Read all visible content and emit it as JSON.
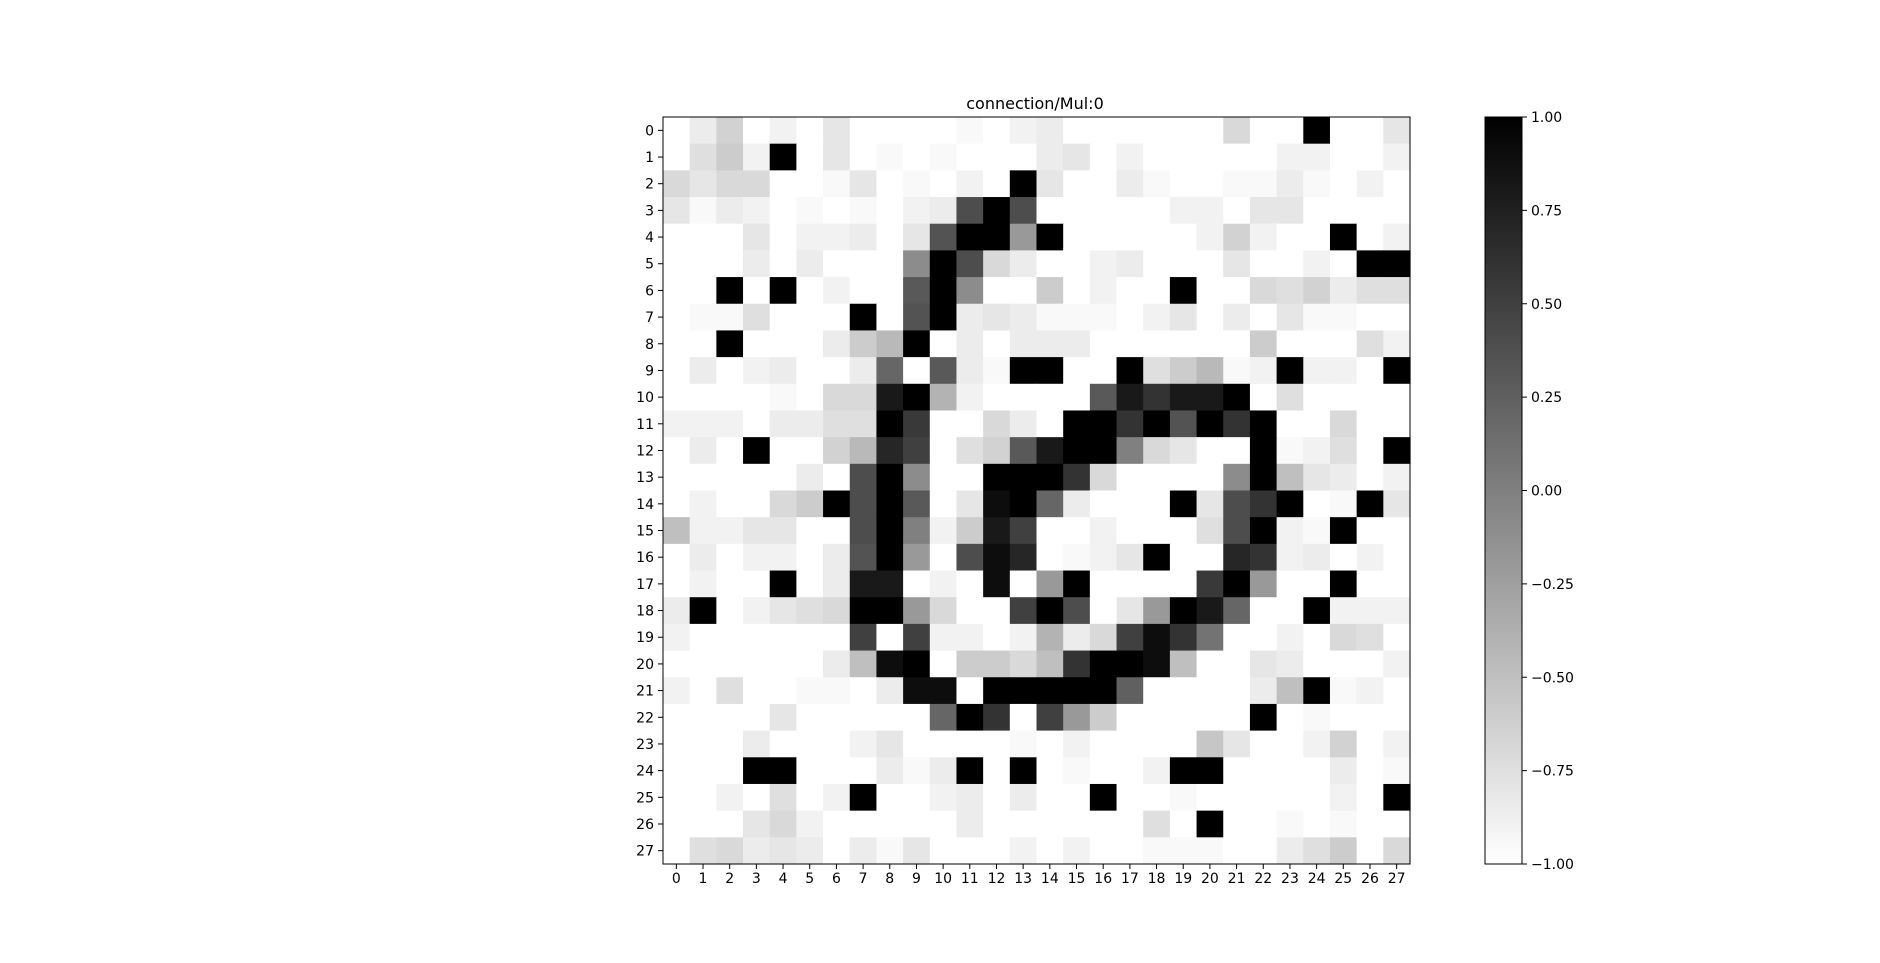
{
  "chart_data": {
    "type": "heatmap",
    "title": "connection/Mul:0",
    "xlabel": "",
    "ylabel": "",
    "rows": 28,
    "cols": 28,
    "x_ticks": [
      "0",
      "1",
      "2",
      "3",
      "4",
      "5",
      "6",
      "7",
      "8",
      "9",
      "10",
      "11",
      "12",
      "13",
      "14",
      "15",
      "16",
      "17",
      "18",
      "19",
      "20",
      "21",
      "22",
      "23",
      "24",
      "25",
      "26",
      "27"
    ],
    "y_ticks": [
      "0",
      "1",
      "2",
      "3",
      "4",
      "5",
      "6",
      "7",
      "8",
      "9",
      "10",
      "11",
      "12",
      "13",
      "14",
      "15",
      "16",
      "17",
      "18",
      "19",
      "20",
      "21",
      "22",
      "23",
      "24",
      "25",
      "26",
      "27"
    ],
    "colormap": "gray_r",
    "vmin": -1.0,
    "vmax": 1.0,
    "colorbar_ticks": [
      1.0,
      0.75,
      0.5,
      0.25,
      0.0,
      -0.25,
      -0.5,
      -0.75,
      -1.0
    ],
    "colorbar_tick_labels": [
      "1.00",
      "0.75",
      "0.50",
      "0.25",
      "0.00",
      "−0.25",
      "−0.50",
      "−0.75",
      "−1.00"
    ],
    "values": [
      [
        -1,
        -0.85,
        -0.65,
        -1,
        -0.9,
        -1,
        -0.8,
        -1,
        -1,
        -1,
        -1,
        -0.95,
        -1,
        -0.9,
        -0.85,
        -1,
        -1,
        -1,
        -1,
        -1,
        -1,
        -0.7,
        -1,
        -1,
        1,
        -1,
        -1,
        -0.8
      ],
      [
        -1,
        -0.75,
        -0.6,
        -0.9,
        1,
        -1,
        -0.8,
        -1,
        -0.95,
        -1,
        -0.95,
        -1,
        -1,
        -1,
        -0.85,
        -0.8,
        -1,
        -0.9,
        -1,
        -1,
        -1,
        -1,
        -1,
        -0.9,
        -0.9,
        -1,
        -1,
        -0.9
      ],
      [
        -0.7,
        -0.8,
        -0.7,
        -0.7,
        -1,
        -1,
        -0.95,
        -0.8,
        -1,
        -0.95,
        -1,
        -0.9,
        -1,
        1,
        -0.8,
        -1,
        -1,
        -0.85,
        -0.95,
        -1,
        -1,
        -0.95,
        -0.95,
        -0.85,
        -0.95,
        -1,
        -0.9,
        -1
      ],
      [
        -0.8,
        -0.95,
        -0.85,
        -0.9,
        -1,
        -0.95,
        -1,
        -0.95,
        -1,
        -0.9,
        -0.85,
        0.4,
        1,
        0.4,
        -1,
        -1,
        -1,
        -1,
        -1,
        -0.9,
        -0.9,
        -1,
        -0.8,
        -0.8,
        -1,
        -1,
        -1,
        -1
      ],
      [
        -1,
        -1,
        -1,
        -0.8,
        -1,
        -0.9,
        -0.9,
        -0.85,
        -1,
        -0.8,
        0.35,
        1,
        1,
        -0.2,
        1,
        -1,
        -1,
        -1,
        -1,
        -1,
        -0.9,
        -0.65,
        -0.9,
        -1,
        -1,
        1,
        -1,
        -0.9
      ],
      [
        -1,
        -1,
        -1,
        -0.85,
        -1,
        -0.85,
        -1,
        -1,
        -1,
        -0.1,
        1,
        0.4,
        -0.7,
        -0.85,
        -1,
        -1,
        -0.9,
        -0.85,
        -1,
        -1,
        -1,
        -0.8,
        -1,
        -1,
        -0.9,
        -1,
        1,
        1
      ],
      [
        -1,
        -1,
        1,
        -1,
        1,
        -1,
        -0.9,
        -1,
        -1,
        0.3,
        1,
        -0.1,
        -1,
        -1,
        -0.6,
        -1,
        -0.9,
        -1,
        -1,
        1,
        -1,
        -1,
        -0.7,
        -0.75,
        -0.65,
        -0.85,
        -0.75,
        -0.75
      ],
      [
        -1,
        -0.95,
        -0.95,
        -0.75,
        -1,
        -1,
        -1,
        1,
        -1,
        0.35,
        1,
        -0.85,
        -0.8,
        -0.85,
        -0.95,
        -0.95,
        -0.95,
        -1,
        -0.9,
        -0.8,
        -1,
        -0.85,
        -1,
        -0.8,
        -0.95,
        -0.95,
        -1,
        -1
      ],
      [
        -1,
        -1,
        1,
        -1,
        -1,
        -1,
        -0.85,
        -0.6,
        -0.45,
        1,
        -1,
        -0.85,
        -1,
        -0.85,
        -0.85,
        -0.85,
        -1,
        -1,
        -1,
        -1,
        -1,
        -1,
        -0.6,
        -1,
        -1,
        -1,
        -0.75,
        -0.9
      ],
      [
        -1,
        -0.85,
        -1,
        -0.9,
        -0.85,
        -1,
        -1,
        -0.85,
        0.2,
        -1,
        0.3,
        -0.85,
        -0.95,
        1,
        1,
        -1,
        -1,
        1,
        -0.75,
        -0.6,
        -0.45,
        -0.95,
        -0.9,
        1,
        -0.9,
        -0.9,
        -1,
        1
      ],
      [
        -1,
        -1,
        -1,
        -1,
        -0.95,
        -1,
        -0.7,
        -0.7,
        0.8,
        1,
        -0.4,
        -0.9,
        -1,
        -1,
        -1,
        -1,
        0.3,
        0.8,
        0.6,
        0.8,
        0.8,
        1,
        -1,
        -0.75,
        -1,
        -1,
        -1,
        -1
      ],
      [
        -0.9,
        -0.9,
        -0.9,
        -1,
        -0.85,
        -0.85,
        -0.75,
        -0.75,
        1,
        0.55,
        -1,
        -1,
        -0.7,
        -0.85,
        -1,
        1,
        1,
        0.6,
        1,
        0.35,
        1,
        0.6,
        1,
        -1,
        -1,
        -0.7,
        -1,
        -1
      ],
      [
        -1,
        -0.85,
        -1,
        1,
        -1,
        -1,
        -0.65,
        -0.45,
        0.7,
        0.5,
        -1,
        -0.75,
        -0.65,
        0.3,
        0.8,
        1,
        1,
        0.0,
        -0.7,
        -0.8,
        -1,
        -1,
        1,
        -0.95,
        -0.9,
        -0.75,
        -1,
        1
      ],
      [
        -1,
        -1,
        -1,
        -1,
        -1,
        -0.85,
        -1,
        0.4,
        1,
        -0.1,
        -1,
        -1,
        1,
        1,
        1,
        0.6,
        -0.7,
        -1,
        -1,
        -1,
        -1,
        -0.1,
        1,
        -0.5,
        -0.8,
        -0.85,
        -1,
        -0.9
      ],
      [
        -1,
        -0.9,
        -1,
        -1,
        -0.7,
        -0.6,
        1,
        0.4,
        1,
        0.3,
        -1,
        -0.8,
        0.9,
        1,
        0.2,
        -0.85,
        -1,
        -1,
        -1,
        1,
        -0.8,
        0.4,
        0.6,
        1,
        -1,
        -0.95,
        1,
        -0.8
      ],
      [
        -0.5,
        -0.9,
        -0.9,
        -0.8,
        -0.8,
        -1,
        -1,
        0.4,
        1,
        0.0,
        -0.9,
        -0.6,
        0.8,
        0.5,
        -1,
        -1,
        -0.9,
        -1,
        -1,
        -1,
        -0.75,
        0.4,
        1,
        -0.9,
        -0.95,
        1,
        -1,
        -1
      ],
      [
        -1,
        -0.85,
        -1,
        -0.9,
        -0.9,
        -1,
        -0.85,
        0.35,
        1,
        -0.2,
        -1,
        0.4,
        0.9,
        0.7,
        -1,
        -0.95,
        -0.9,
        -0.8,
        1,
        -1,
        -1,
        0.7,
        0.6,
        -0.9,
        -0.85,
        -1,
        -0.9,
        -1
      ],
      [
        -1,
        -0.9,
        -1,
        -1,
        1,
        -1,
        -0.85,
        0.8,
        0.8,
        -1,
        -0.9,
        -1,
        0.9,
        -1,
        -0.2,
        1,
        -1,
        -1,
        -1,
        -1,
        0.55,
        1,
        -0.2,
        -1,
        -1,
        1,
        -1,
        -1
      ],
      [
        -0.85,
        1,
        -1,
        -0.9,
        -0.8,
        -0.75,
        -0.7,
        1,
        1,
        -0.2,
        -0.7,
        -1,
        -1,
        0.5,
        1,
        0.4,
        -1,
        -0.8,
        -0.2,
        1,
        0.8,
        0.2,
        -1,
        -1,
        1,
        -0.9,
        -0.9,
        -0.9
      ],
      [
        -0.9,
        -1,
        -1,
        -1,
        -1,
        -1,
        -1,
        0.5,
        -1,
        0.5,
        -0.9,
        -0.9,
        -1,
        -0.9,
        -0.4,
        -0.85,
        -0.7,
        0.5,
        0.9,
        0.6,
        0.1,
        -1,
        -1,
        -0.9,
        -1,
        -0.7,
        -0.75,
        -1
      ],
      [
        -1,
        -1,
        -1,
        -1,
        -1,
        -1,
        -0.85,
        -0.5,
        0.9,
        1,
        -1,
        -0.6,
        -0.6,
        -0.7,
        -0.5,
        0.6,
        1,
        1,
        0.9,
        -0.5,
        -1,
        -1,
        -0.8,
        -0.85,
        -1,
        -1,
        -1,
        -0.9
      ],
      [
        -0.9,
        -1,
        -0.75,
        -1,
        -1,
        -0.95,
        -0.95,
        -1,
        -0.85,
        0.9,
        0.9,
        -1,
        1,
        1,
        1,
        1,
        1,
        0.25,
        -1,
        -1,
        -1,
        -1,
        -0.85,
        -0.5,
        1,
        -0.95,
        -0.9,
        -1
      ],
      [
        -1,
        -1,
        -1,
        -1,
        -0.8,
        -1,
        -1,
        -1,
        -1,
        -1,
        0.2,
        1,
        0.6,
        -1,
        0.5,
        -0.2,
        -0.6,
        -1,
        -1,
        -1,
        -1,
        -1,
        1,
        -1,
        -0.95,
        -1,
        -1,
        -1
      ],
      [
        -1,
        -1,
        -1,
        -0.85,
        -1,
        -1,
        -1,
        -0.9,
        -0.8,
        -1,
        -1,
        -1,
        -1,
        -0.95,
        -1,
        -0.9,
        -1,
        -1,
        -1,
        -1,
        -0.55,
        -0.8,
        -1,
        -1,
        -0.9,
        -0.65,
        -1,
        -0.9
      ],
      [
        -1,
        -1,
        -1,
        1,
        1,
        -1,
        -1,
        -1,
        -0.85,
        -0.95,
        -0.85,
        1,
        -1,
        1,
        -1,
        -0.95,
        -1,
        -1,
        -0.9,
        1,
        1,
        -1,
        -1,
        -1,
        -1,
        -0.85,
        -1,
        -0.95
      ],
      [
        -1,
        -1,
        -0.9,
        -1,
        -0.75,
        -1,
        -0.9,
        1,
        -1,
        -1,
        -0.9,
        -0.85,
        -1,
        -0.85,
        -1,
        -1,
        1,
        -1,
        -1,
        -0.95,
        -1,
        -1,
        -1,
        -1,
        -1,
        -0.9,
        -1,
        1
      ],
      [
        -1,
        -1,
        -1,
        -0.8,
        -0.7,
        -0.9,
        -1,
        -1,
        -1,
        -1,
        -1,
        -0.85,
        -1,
        -1,
        -1,
        -1,
        -1,
        -1,
        -0.75,
        -1,
        1,
        -1,
        -1,
        -0.95,
        -1,
        -0.95,
        -1,
        -1
      ],
      [
        -1,
        -0.75,
        -0.7,
        -0.85,
        -0.8,
        -0.85,
        -1,
        -0.85,
        -0.95,
        -0.8,
        -1,
        -1,
        -1,
        -0.9,
        -1,
        -0.9,
        -1,
        -1,
        -0.95,
        -0.95,
        -0.95,
        -1,
        -1,
        -0.85,
        -0.75,
        -0.6,
        -1,
        -0.7
      ]
    ]
  }
}
